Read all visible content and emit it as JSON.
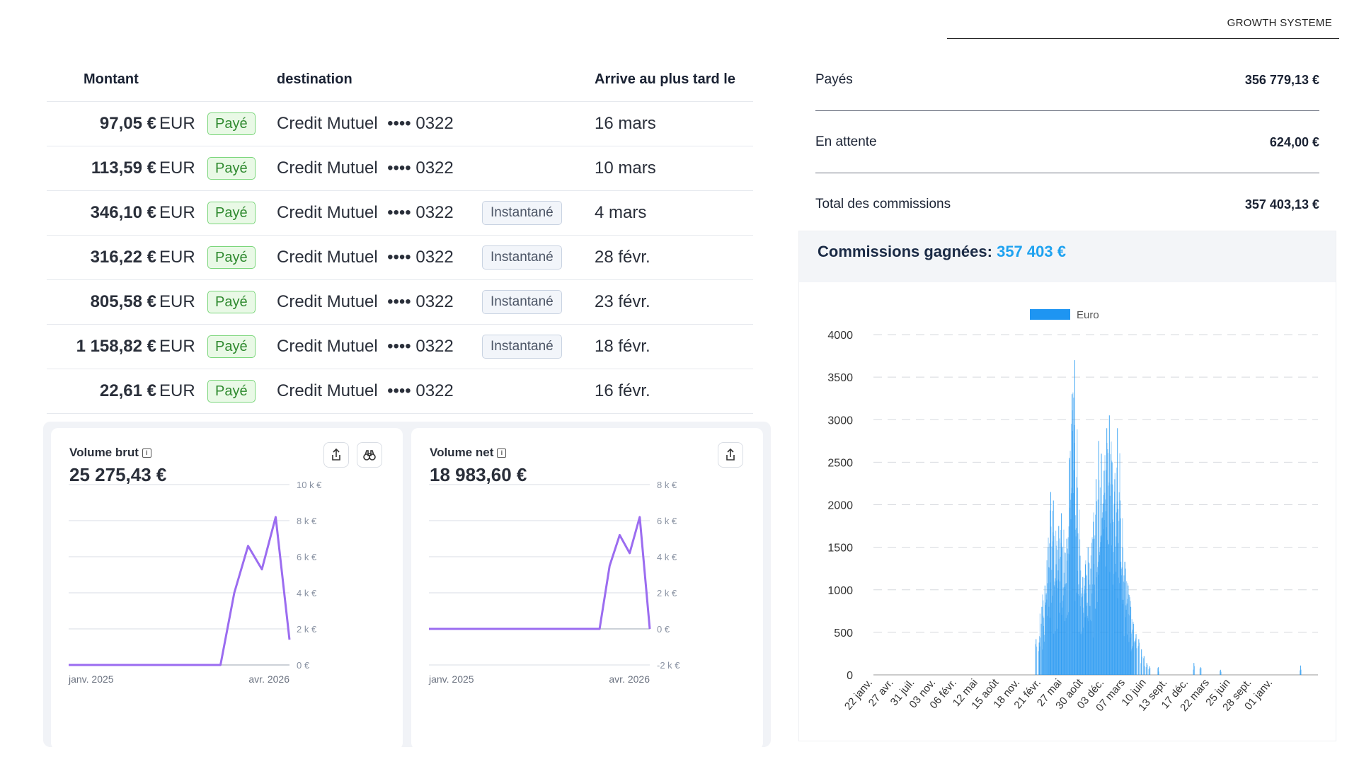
{
  "brand": "GROWTH SYSTEME",
  "payouts": {
    "headers": {
      "amount": "Montant",
      "destination": "destination",
      "arrival": "Arrive au plus tard le"
    },
    "rows": [
      {
        "amount": "97,05 €",
        "currency": "EUR",
        "status": "Payé",
        "bank": "Credit Mutuel",
        "masked": "•••• 0322",
        "tag": "",
        "date": "16 mars"
      },
      {
        "amount": "113,59 €",
        "currency": "EUR",
        "status": "Payé",
        "bank": "Credit Mutuel",
        "masked": "•••• 0322",
        "tag": "",
        "date": "10 mars"
      },
      {
        "amount": "346,10 €",
        "currency": "EUR",
        "status": "Payé",
        "bank": "Credit Mutuel",
        "masked": "•••• 0322",
        "tag": "Instantané",
        "date": "4 mars"
      },
      {
        "amount": "316,22 €",
        "currency": "EUR",
        "status": "Payé",
        "bank": "Credit Mutuel",
        "masked": "•••• 0322",
        "tag": "Instantané",
        "date": "28 févr."
      },
      {
        "amount": "805,58 €",
        "currency": "EUR",
        "status": "Payé",
        "bank": "Credit Mutuel",
        "masked": "•••• 0322",
        "tag": "Instantané",
        "date": "23 févr."
      },
      {
        "amount": "1 158,82 €",
        "currency": "EUR",
        "status": "Payé",
        "bank": "Credit Mutuel",
        "masked": "•••• 0322",
        "tag": "Instantané",
        "date": "18 févr."
      },
      {
        "amount": "22,61 €",
        "currency": "EUR",
        "status": "Payé",
        "bank": "Credit Mutuel",
        "masked": "•••• 0322",
        "tag": "",
        "date": "16 févr."
      }
    ]
  },
  "cards": [
    {
      "title": "Volume brut",
      "value": "25 275,43 €",
      "icons": [
        "share-icon",
        "binoculars-icon"
      ]
    },
    {
      "title": "Volume net",
      "value": "18 983,60 €",
      "icons": [
        "share-icon"
      ]
    }
  ],
  "summary": {
    "paid_label": "Payés",
    "paid_value": "356 779,13 €",
    "pending_label": "En attente",
    "pending_value": "624,00 €",
    "total_label": "Total des commissions",
    "total_value": "357 403,13 €"
  },
  "commissions": {
    "title": "Commissions gagnées:",
    "amount": "357 403 €"
  },
  "chart_data": [
    {
      "type": "line",
      "x_labels": [
        "janv. 2025",
        "avr. 2026"
      ],
      "y_ticks": [
        "0 €",
        "2 k €",
        "4 k €",
        "6 k €",
        "8 k €",
        "10 k €"
      ],
      "ylim": [
        0,
        10000
      ],
      "series": [
        {
          "values": [
            0,
            0,
            0,
            0,
            0,
            0,
            0,
            0,
            0,
            0,
            0,
            0,
            4000,
            6600,
            5300,
            8200,
            1400
          ]
        }
      ],
      "color": "#9b6cf0"
    },
    {
      "type": "line",
      "x_labels": [
        "janv. 2025",
        "avr. 2026"
      ],
      "y_ticks": [
        "-2 k €",
        "0 €",
        "2 k €",
        "4 k €",
        "6 k €",
        "8 k €"
      ],
      "ylim": [
        -2000,
        8000
      ],
      "series": [
        {
          "values": [
            0,
            0,
            0,
            0,
            0,
            0,
            0,
            0,
            0,
            0,
            0,
            0,
            0,
            0,
            0,
            0,
            0,
            0,
            3500,
            5200,
            4200,
            6200,
            0
          ]
        }
      ],
      "color": "#9b6cf0"
    },
    {
      "type": "bar",
      "legend": [
        "Euro"
      ],
      "legend_position": "top-center",
      "color": "#1e95f2",
      "y_ticks": [
        0,
        500,
        1000,
        1500,
        2000,
        2500,
        3000,
        3500,
        4000
      ],
      "ylim": [
        0,
        4000
      ],
      "grid": true,
      "x_labels": [
        "22 janv.",
        "27 avr.",
        "31 juil.",
        "03 nov.",
        "06 févr.",
        "12 mai",
        "15 août",
        "18 nov.",
        "21 févr.",
        "27 mai",
        "30 août",
        "03 déc.",
        "07 mars",
        "10 juin",
        "13 sept.",
        "17 déc.",
        "22 mars",
        "25 juin",
        "28 sept.",
        "01 janv."
      ],
      "series": [
        {
          "name": "Euro",
          "peaks": [
            {
              "at": 0.365,
              "value": 420
            },
            {
              "at": 0.372,
              "value": 380
            },
            {
              "at": 0.378,
              "value": 800
            },
            {
              "at": 0.385,
              "value": 1050
            },
            {
              "at": 0.392,
              "value": 1500
            },
            {
              "at": 0.398,
              "value": 2150
            },
            {
              "at": 0.404,
              "value": 2050
            },
            {
              "at": 0.41,
              "value": 1300
            },
            {
              "at": 0.416,
              "value": 1750
            },
            {
              "at": 0.422,
              "value": 1900
            },
            {
              "at": 0.428,
              "value": 1200
            },
            {
              "at": 0.434,
              "value": 1600
            },
            {
              "at": 0.44,
              "value": 2550
            },
            {
              "at": 0.446,
              "value": 3300
            },
            {
              "at": 0.452,
              "value": 3700
            },
            {
              "at": 0.458,
              "value": 2200
            },
            {
              "at": 0.464,
              "value": 1400
            },
            {
              "at": 0.47,
              "value": 1150
            },
            {
              "at": 0.476,
              "value": 1300
            },
            {
              "at": 0.482,
              "value": 1500
            },
            {
              "at": 0.488,
              "value": 1250
            },
            {
              "at": 0.494,
              "value": 1800
            },
            {
              "at": 0.5,
              "value": 2300
            },
            {
              "at": 0.506,
              "value": 2750
            },
            {
              "at": 0.512,
              "value": 2600
            },
            {
              "at": 0.518,
              "value": 2400
            },
            {
              "at": 0.524,
              "value": 2900
            },
            {
              "at": 0.53,
              "value": 3050
            },
            {
              "at": 0.536,
              "value": 2500
            },
            {
              "at": 0.542,
              "value": 2300
            },
            {
              "at": 0.548,
              "value": 2900
            },
            {
              "at": 0.554,
              "value": 2050
            },
            {
              "at": 0.56,
              "value": 1500
            },
            {
              "at": 0.566,
              "value": 1250
            },
            {
              "at": 0.572,
              "value": 1050
            },
            {
              "at": 0.578,
              "value": 800
            },
            {
              "at": 0.584,
              "value": 600
            },
            {
              "at": 0.59,
              "value": 480
            },
            {
              "at": 0.596,
              "value": 420
            },
            {
              "at": 0.602,
              "value": 300
            },
            {
              "at": 0.608,
              "value": 220
            },
            {
              "at": 0.614,
              "value": 140
            },
            {
              "at": 0.62,
              "value": 100
            },
            {
              "at": 0.64,
              "value": 90
            },
            {
              "at": 0.72,
              "value": 140
            },
            {
              "at": 0.735,
              "value": 90
            },
            {
              "at": 0.78,
              "value": 60
            },
            {
              "at": 0.96,
              "value": 110
            }
          ]
        }
      ]
    }
  ]
}
